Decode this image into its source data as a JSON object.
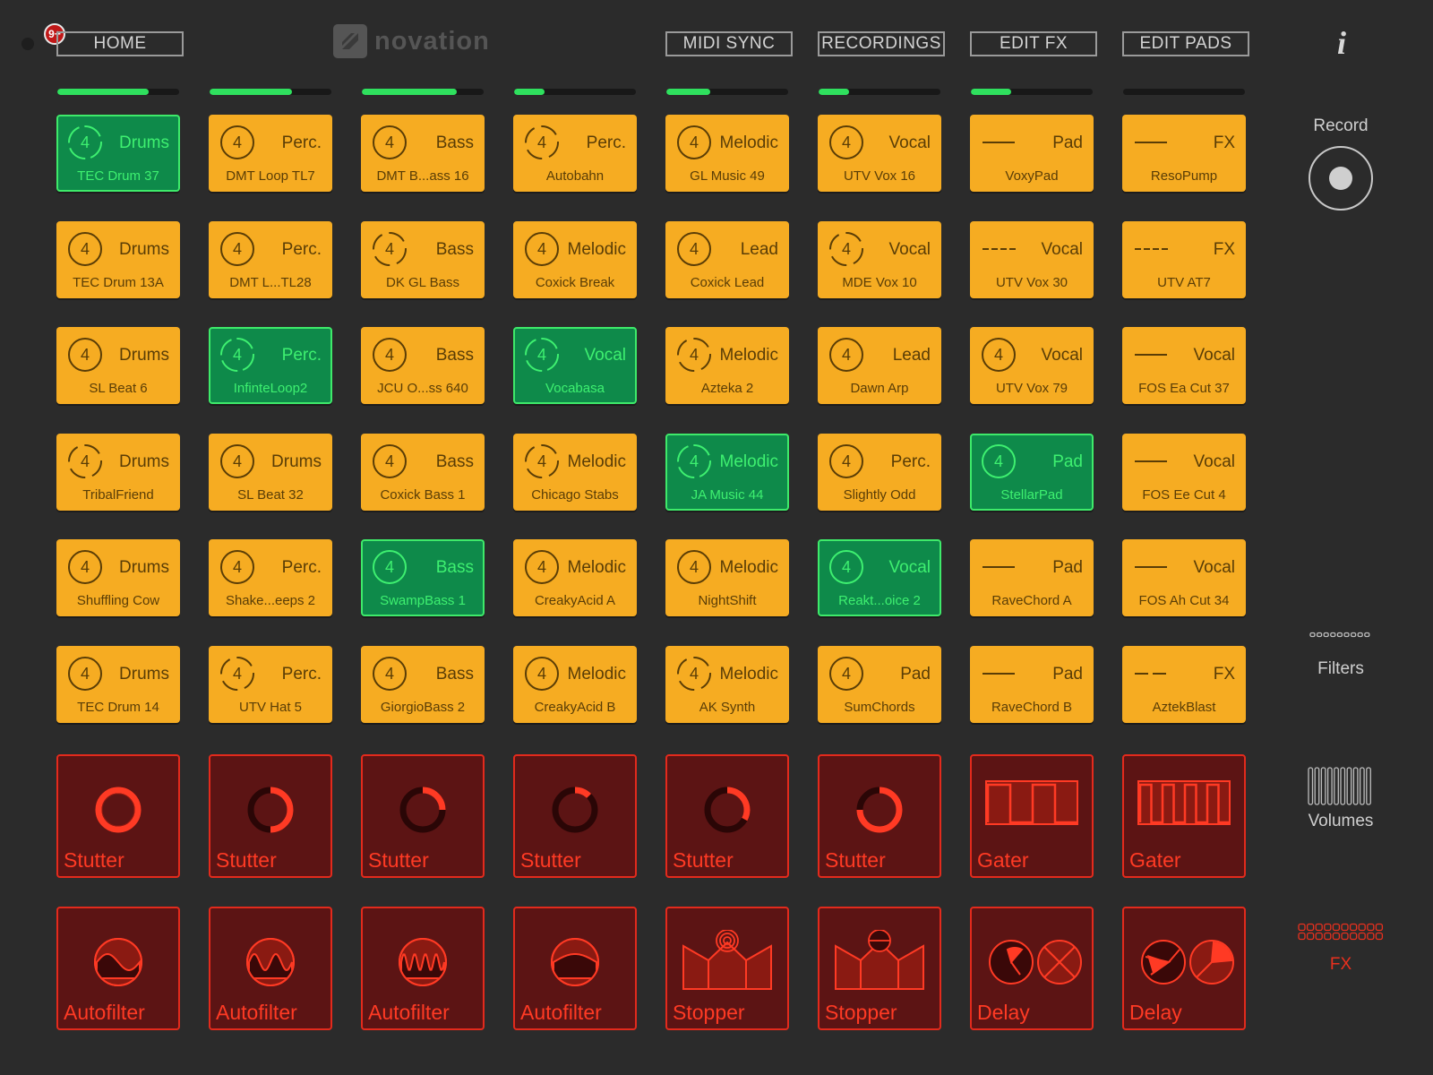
{
  "notifications": {
    "badge": "9+"
  },
  "top_nav": {
    "home": "HOME",
    "midi_sync": "MIDI SYNC",
    "recordings": "RECORDINGS",
    "edit_fx": "EDIT FX",
    "edit_pads": "EDIT PADS",
    "logo_text": "novation",
    "info_glyph": "i"
  },
  "meters": [
    0.75,
    0.68,
    0.78,
    0.25,
    0.36,
    0.25,
    0.33,
    0.0
  ],
  "grid": {
    "rows": [
      [
        {
          "cat": "Drums",
          "name": "TEC Drum 37",
          "state": "playing",
          "icon": "beat-count-4",
          "count": "4"
        },
        {
          "cat": "Perc.",
          "name": "DMT Loop TL7",
          "state": "idle",
          "icon": "beat-count-4",
          "count": "4"
        },
        {
          "cat": "Bass",
          "name": "DMT B...ass 16",
          "state": "idle",
          "icon": "beat-count-4",
          "count": "4"
        },
        {
          "cat": "Perc.",
          "name": "Autobahn",
          "state": "idle",
          "icon": "beat-count-4",
          "count": "4"
        },
        {
          "cat": "Melodic",
          "name": "GL Music 49",
          "state": "idle",
          "icon": "beat-count-4",
          "count": "4"
        },
        {
          "cat": "Vocal",
          "name": "UTV Vox 16",
          "state": "idle",
          "icon": "beat-count-4",
          "count": "4"
        },
        {
          "cat": "Pad",
          "name": "VoxyPad",
          "state": "idle",
          "icon": "oneshot-line-icon",
          "count": ""
        },
        {
          "cat": "FX",
          "name": "ResoPump",
          "state": "idle",
          "icon": "oneshot-line-icon",
          "count": ""
        }
      ],
      [
        {
          "cat": "Drums",
          "name": "TEC Drum 13A",
          "state": "idle",
          "icon": "beat-count-4",
          "count": "4"
        },
        {
          "cat": "Perc.",
          "name": "DMT L...TL28",
          "state": "idle",
          "icon": "beat-count-4",
          "count": "4"
        },
        {
          "cat": "Bass",
          "name": "DK GL Bass",
          "state": "idle",
          "icon": "beat-count-4",
          "count": "4"
        },
        {
          "cat": "Melodic",
          "name": "Coxick Break",
          "state": "idle",
          "icon": "beat-count-4",
          "count": "4"
        },
        {
          "cat": "Lead",
          "name": "Coxick Lead",
          "state": "idle",
          "icon": "beat-count-4",
          "count": "4"
        },
        {
          "cat": "Vocal",
          "name": "MDE Vox 10",
          "state": "idle",
          "icon": "beat-count-4",
          "count": "4"
        },
        {
          "cat": "Vocal",
          "name": "UTV Vox 30",
          "state": "idle",
          "icon": "dashes-4-icon",
          "count": ""
        },
        {
          "cat": "FX",
          "name": "UTV AT7",
          "state": "idle",
          "icon": "dashes-4-icon",
          "count": ""
        }
      ],
      [
        {
          "cat": "Drums",
          "name": "SL Beat 6",
          "state": "idle",
          "icon": "beat-count-4",
          "count": "4"
        },
        {
          "cat": "Perc.",
          "name": "InfinteLoop2",
          "state": "playing",
          "icon": "beat-count-4",
          "count": "4"
        },
        {
          "cat": "Bass",
          "name": "JCU O...ss 640",
          "state": "idle",
          "icon": "beat-count-4",
          "count": "4"
        },
        {
          "cat": "Vocal",
          "name": "Vocabasa",
          "state": "playing",
          "icon": "beat-count-4",
          "count": "4"
        },
        {
          "cat": "Melodic",
          "name": "Azteka 2",
          "state": "idle",
          "icon": "beat-count-4",
          "count": "4"
        },
        {
          "cat": "Lead",
          "name": "Dawn Arp",
          "state": "idle",
          "icon": "beat-count-4",
          "count": "4"
        },
        {
          "cat": "Vocal",
          "name": "UTV Vox 79",
          "state": "idle",
          "icon": "beat-count-4",
          "count": "4"
        },
        {
          "cat": "Vocal",
          "name": "FOS Ea Cut 37",
          "state": "idle",
          "icon": "oneshot-line-icon",
          "count": ""
        }
      ],
      [
        {
          "cat": "Drums",
          "name": "TribalFriend",
          "state": "idle",
          "icon": "beat-count-4",
          "count": "4"
        },
        {
          "cat": "Drums",
          "name": "SL Beat 32",
          "state": "idle",
          "icon": "beat-count-4",
          "count": "4"
        },
        {
          "cat": "Bass",
          "name": "Coxick Bass 1",
          "state": "idle",
          "icon": "beat-count-4",
          "count": "4"
        },
        {
          "cat": "Melodic",
          "name": "Chicago Stabs",
          "state": "idle",
          "icon": "beat-count-4",
          "count": "4"
        },
        {
          "cat": "Melodic",
          "name": "JA Music 44",
          "state": "playing",
          "icon": "beat-count-4",
          "count": "4"
        },
        {
          "cat": "Perc.",
          "name": "Slightly Odd",
          "state": "idle",
          "icon": "beat-count-4",
          "count": "4"
        },
        {
          "cat": "Pad",
          "name": "StellarPad",
          "state": "playing-solid",
          "icon": "beat-count-4",
          "count": "4"
        },
        {
          "cat": "Vocal",
          "name": "FOS Ee Cut 4",
          "state": "idle",
          "icon": "oneshot-line-icon",
          "count": ""
        }
      ],
      [
        {
          "cat": "Drums",
          "name": "Shuffling Cow",
          "state": "idle",
          "icon": "beat-count-4",
          "count": "4"
        },
        {
          "cat": "Perc.",
          "name": "Shake...eeps 2",
          "state": "idle",
          "icon": "beat-count-4",
          "count": "4"
        },
        {
          "cat": "Bass",
          "name": "SwampBass 1",
          "state": "playing-solid",
          "icon": "beat-count-4",
          "count": "4"
        },
        {
          "cat": "Melodic",
          "name": "CreakyAcid A",
          "state": "idle",
          "icon": "beat-count-4",
          "count": "4"
        },
        {
          "cat": "Melodic",
          "name": "NightShift",
          "state": "idle",
          "icon": "beat-count-4",
          "count": "4"
        },
        {
          "cat": "Vocal",
          "name": "Reakt...oice 2",
          "state": "playing-solid",
          "icon": "beat-count-4",
          "count": "4"
        },
        {
          "cat": "Pad",
          "name": "RaveChord A",
          "state": "idle",
          "icon": "oneshot-line-icon",
          "count": ""
        },
        {
          "cat": "Vocal",
          "name": "FOS Ah Cut 34",
          "state": "idle",
          "icon": "oneshot-line-icon",
          "count": ""
        }
      ],
      [
        {
          "cat": "Drums",
          "name": "TEC Drum 14",
          "state": "idle",
          "icon": "beat-count-4",
          "count": "4"
        },
        {
          "cat": "Perc.",
          "name": "UTV Hat 5",
          "state": "idle",
          "icon": "beat-count-4",
          "count": "4"
        },
        {
          "cat": "Bass",
          "name": "GiorgioBass 2",
          "state": "idle",
          "icon": "beat-count-4",
          "count": "4"
        },
        {
          "cat": "Melodic",
          "name": "CreakyAcid B",
          "state": "idle",
          "icon": "beat-count-4",
          "count": "4"
        },
        {
          "cat": "Melodic",
          "name": "AK Synth",
          "state": "idle",
          "icon": "beat-count-4",
          "count": "4"
        },
        {
          "cat": "Pad",
          "name": "SumChords",
          "state": "idle",
          "icon": "beat-count-4",
          "count": "4"
        },
        {
          "cat": "Pad",
          "name": "RaveChord B",
          "state": "idle",
          "icon": "oneshot-line-icon",
          "count": ""
        },
        {
          "cat": "FX",
          "name": "AztekBlast",
          "state": "idle",
          "icon": "dashes-2-icon",
          "count": ""
        }
      ]
    ]
  },
  "fx": {
    "rows": [
      [
        {
          "label": "Stutter",
          "icon": "stutter-icon",
          "arc": 1.0
        },
        {
          "label": "Stutter",
          "icon": "stutter-icon",
          "arc": 0.5
        },
        {
          "label": "Stutter",
          "icon": "stutter-icon",
          "arc": 0.25
        },
        {
          "label": "Stutter",
          "icon": "stutter-icon",
          "arc": 0.125
        },
        {
          "label": "Stutter",
          "icon": "stutter-icon",
          "arc": 0.33
        },
        {
          "label": "Stutter",
          "icon": "stutter-icon",
          "arc": 0.75
        },
        {
          "label": "Gater",
          "icon": "gater-icon",
          "pulses": 2
        },
        {
          "label": "Gater",
          "icon": "gater-icon",
          "pulses": 4
        }
      ],
      [
        {
          "label": "Autofilter",
          "icon": "autofilter-icon",
          "cycles": 1
        },
        {
          "label": "Autofilter",
          "icon": "autofilter-icon",
          "cycles": 2
        },
        {
          "label": "Autofilter",
          "icon": "autofilter-icon",
          "cycles": 4
        },
        {
          "label": "Autofilter",
          "icon": "autofilter-icon",
          "cycles": 0.5
        },
        {
          "label": "Stopper",
          "icon": "stopper-icon",
          "variant": "rings"
        },
        {
          "label": "Stopper",
          "icon": "stopper-icon",
          "variant": "dot"
        },
        {
          "label": "Delay",
          "icon": "delay-icon",
          "variant": "a"
        },
        {
          "label": "Delay",
          "icon": "delay-icon",
          "variant": "b"
        }
      ]
    ]
  },
  "side": {
    "record_label": "Record",
    "filters_label": "Filters",
    "volumes_label": "Volumes",
    "fx_label": "FX"
  },
  "colors": {
    "pad_idle": "#f6ac22",
    "pad_playing": "#0e8a4a",
    "pad_playing_accent": "#3eea6a",
    "fx_pad": "#5c1414",
    "fx_accent": "#ff3a24",
    "meter_fill": "#2fe05e",
    "background": "#2b2b2b"
  }
}
